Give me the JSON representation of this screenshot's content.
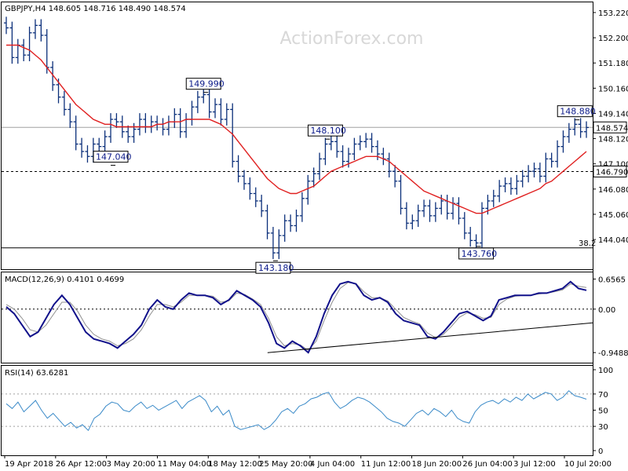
{
  "chart_data": [
    {
      "type": "candlestick",
      "title": "GBPJPY,H4  148.605 148.716 148.490 148.574",
      "watermark": "ActionForex.com",
      "ylim": [
        142.9,
        153.6
      ],
      "y_ticks": [
        "153.220",
        "152.200",
        "151.180",
        "150.160",
        "149.140",
        "148.120",
        "147.100",
        "146.080",
        "145.060",
        "144.040"
      ],
      "current_price_label": "148.574",
      "horizontal_levels": [
        {
          "value": 148.574,
          "label": "148.574",
          "style": "solid",
          "color": "#a0a0a0"
        },
        {
          "value": 146.79,
          "label": "146.790",
          "style": "dashed",
          "color": "#000000"
        },
        {
          "value": 143.7,
          "label": "38.2",
          "style": "solid",
          "color": "#000000"
        }
      ],
      "annotations": [
        {
          "label": "149.990",
          "x_index": 34,
          "value": 149.99
        },
        {
          "label": "147.040",
          "x_index": 18,
          "value": 147.04
        },
        {
          "label": "148.100",
          "x_index": 55,
          "value": 148.1
        },
        {
          "label": "143.180",
          "x_index": 46,
          "value": 143.18
        },
        {
          "label": "143.760",
          "x_index": 81,
          "value": 143.76
        },
        {
          "label": "148.880",
          "x_index": 98,
          "value": 148.88
        }
      ],
      "ma_color": "#e02020",
      "bar_color": "#0b2f7a",
      "x": [
        0,
        1,
        2,
        3,
        4,
        5,
        6,
        7,
        8,
        9,
        10,
        11,
        12,
        13,
        14,
        15,
        16,
        17,
        18,
        19,
        20,
        21,
        22,
        23,
        24,
        25,
        26,
        27,
        28,
        29,
        30,
        31,
        32,
        33,
        34,
        35,
        36,
        37,
        38,
        39,
        40,
        41,
        42,
        43,
        44,
        45,
        46,
        47,
        48,
        49,
        50,
        51,
        52,
        53,
        54,
        55,
        56,
        57,
        58,
        59,
        60,
        61,
        62,
        63,
        64,
        65,
        66,
        67,
        68,
        69,
        70,
        71,
        72,
        73,
        74,
        75,
        76,
        77,
        78,
        79,
        80,
        81,
        82,
        83,
        84,
        85,
        86,
        87,
        88,
        89,
        90,
        91,
        92,
        93,
        94,
        95,
        96,
        97,
        98,
        99,
        100
      ],
      "close": [
        152.6,
        151.4,
        151.9,
        151.5,
        152.4,
        152.7,
        152.3,
        151.0,
        150.3,
        149.8,
        149.3,
        148.8,
        147.9,
        147.6,
        147.4,
        147.9,
        147.8,
        148.2,
        148.9,
        148.8,
        148.4,
        148.2,
        148.5,
        148.9,
        148.6,
        148.8,
        148.7,
        148.5,
        148.8,
        149.1,
        148.4,
        148.9,
        149.4,
        149.8,
        149.9,
        149.2,
        149.5,
        148.9,
        149.3,
        147.2,
        146.6,
        146.3,
        145.9,
        145.6,
        145.2,
        144.3,
        143.5,
        144.2,
        144.8,
        144.6,
        145.0,
        145.7,
        146.4,
        146.7,
        147.3,
        147.9,
        148.0,
        147.6,
        147.2,
        147.5,
        147.9,
        148.0,
        148.1,
        147.8,
        147.5,
        147.3,
        146.8,
        146.4,
        145.3,
        144.7,
        144.8,
        145.2,
        145.4,
        145.0,
        145.3,
        145.6,
        145.1,
        145.5,
        144.9,
        144.3,
        144.0,
        143.9,
        145.3,
        145.6,
        145.8,
        146.2,
        146.3,
        146.1,
        146.4,
        146.6,
        146.8,
        146.9,
        146.6,
        147.3,
        147.2,
        147.8,
        148.2,
        148.5,
        148.7,
        148.4,
        148.57
      ],
      "ma": [
        151.9,
        151.9,
        151.9,
        151.8,
        151.7,
        151.5,
        151.3,
        151.0,
        150.7,
        150.4,
        150.1,
        149.8,
        149.5,
        149.3,
        149.1,
        148.9,
        148.8,
        148.7,
        148.7,
        148.6,
        148.6,
        148.6,
        148.6,
        148.6,
        148.6,
        148.6,
        148.7,
        148.7,
        148.8,
        148.8,
        148.8,
        148.9,
        148.9,
        148.9,
        148.9,
        148.9,
        148.8,
        148.7,
        148.5,
        148.3,
        148.0,
        147.7,
        147.4,
        147.1,
        146.8,
        146.5,
        146.3,
        146.1,
        146.0,
        145.9,
        145.9,
        146.0,
        146.1,
        146.2,
        146.4,
        146.6,
        146.8,
        146.9,
        147.0,
        147.1,
        147.2,
        147.3,
        147.4,
        147.4,
        147.4,
        147.3,
        147.2,
        147.0,
        146.8,
        146.6,
        146.4,
        146.2,
        146.0,
        145.9,
        145.8,
        145.7,
        145.6,
        145.5,
        145.4,
        145.3,
        145.2,
        145.1,
        145.1,
        145.2,
        145.3,
        145.4,
        145.5,
        145.6,
        145.7,
        145.8,
        145.9,
        146.0,
        146.1,
        146.3,
        146.4,
        146.6,
        146.8,
        147.0,
        147.2,
        147.4,
        147.6
      ]
    },
    {
      "type": "line",
      "title": "MACD(12,26,9) 0.4101 0.4699",
      "ylim": [
        -1.1,
        0.75
      ],
      "y_ticks": [
        "0.6565",
        "0.00",
        "-0.9488"
      ],
      "series": [
        {
          "name": "MACD",
          "color": "#10108a",
          "values": [
            0.05,
            -0.1,
            -0.35,
            -0.6,
            -0.5,
            -0.2,
            0.1,
            0.3,
            0.1,
            -0.2,
            -0.5,
            -0.65,
            -0.7,
            -0.75,
            -0.85,
            -0.7,
            -0.55,
            -0.35,
            0.0,
            0.2,
            0.05,
            0.0,
            0.2,
            0.35,
            0.3,
            0.3,
            0.25,
            0.1,
            0.2,
            0.4,
            0.3,
            0.2,
            0.05,
            -0.3,
            -0.75,
            -0.85,
            -0.7,
            -0.8,
            -0.95,
            -0.6,
            -0.1,
            0.3,
            0.55,
            0.6,
            0.55,
            0.3,
            0.2,
            0.25,
            0.15,
            -0.1,
            -0.25,
            -0.3,
            -0.35,
            -0.6,
            -0.65,
            -0.5,
            -0.3,
            -0.1,
            -0.05,
            -0.15,
            -0.25,
            -0.15,
            0.2,
            0.25,
            0.3,
            0.3,
            0.3,
            0.35,
            0.35,
            0.4,
            0.45,
            0.6,
            0.45,
            0.41
          ]
        },
        {
          "name": "Signal",
          "color": "#909090",
          "values": [
            0.1,
            0.0,
            -0.2,
            -0.45,
            -0.5,
            -0.35,
            -0.1,
            0.15,
            0.15,
            -0.05,
            -0.35,
            -0.55,
            -0.65,
            -0.7,
            -0.8,
            -0.75,
            -0.65,
            -0.45,
            -0.15,
            0.1,
            0.1,
            0.05,
            0.15,
            0.3,
            0.3,
            0.3,
            0.28,
            0.15,
            0.18,
            0.35,
            0.32,
            0.22,
            0.1,
            -0.2,
            -0.6,
            -0.8,
            -0.75,
            -0.78,
            -0.9,
            -0.7,
            -0.25,
            0.15,
            0.45,
            0.58,
            0.56,
            0.38,
            0.25,
            0.25,
            0.18,
            0.0,
            -0.18,
            -0.26,
            -0.32,
            -0.52,
            -0.62,
            -0.55,
            -0.38,
            -0.18,
            -0.08,
            -0.12,
            -0.2,
            -0.18,
            0.1,
            0.22,
            0.28,
            0.3,
            0.3,
            0.33,
            0.35,
            0.38,
            0.42,
            0.55,
            0.5,
            0.47
          ]
        }
      ],
      "trendline": {
        "from": [
          0.45,
          -0.95
        ],
        "to": [
          1.0,
          -0.3
        ]
      }
    },
    {
      "type": "line",
      "title": "RSI(14) 63.6281",
      "ylim": [
        0,
        100
      ],
      "y_ticks": [
        "100",
        "70",
        "50",
        "30",
        "0"
      ],
      "series": [
        {
          "name": "RSI",
          "color": "#3a8ac8",
          "values": [
            58,
            52,
            60,
            48,
            55,
            62,
            50,
            40,
            46,
            38,
            30,
            35,
            28,
            32,
            25,
            40,
            45,
            55,
            60,
            58,
            50,
            48,
            55,
            60,
            52,
            56,
            50,
            54,
            58,
            62,
            52,
            60,
            64,
            68,
            62,
            48,
            55,
            44,
            50,
            30,
            26,
            28,
            30,
            32,
            26,
            30,
            38,
            48,
            52,
            46,
            55,
            58,
            64,
            66,
            70,
            72,
            60,
            52,
            56,
            62,
            66,
            64,
            60,
            54,
            48,
            40,
            36,
            34,
            30,
            38,
            46,
            50,
            44,
            52,
            48,
            42,
            50,
            40,
            36,
            34,
            48,
            56,
            60,
            62,
            58,
            64,
            60,
            66,
            62,
            70,
            64,
            68,
            72,
            70,
            62,
            66,
            74,
            68,
            66,
            63.6
          ]
        }
      ],
      "levels": [
        70,
        30
      ]
    }
  ],
  "x_axis": {
    "labels": [
      "19 Apr 2018",
      "26 Apr 12:00",
      "3 May 20:00",
      "11 May 04:00",
      "18 May 12:00",
      "25 May 20:00",
      "4 Jun 04:00",
      "11 Jun 12:00",
      "18 Jun 20:00",
      "26 Jun 04:00",
      "3 Jul 12:00",
      "10 Jul 20:00"
    ]
  }
}
